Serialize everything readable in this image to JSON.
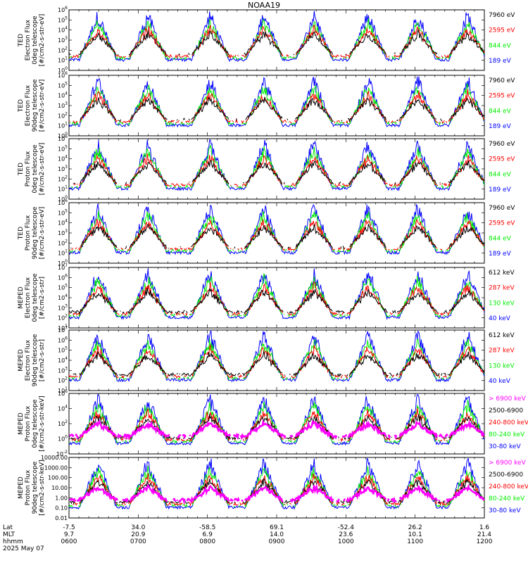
{
  "title": "NOAA19",
  "date_label": "2025 May 07",
  "colors": {
    "black": "#000000",
    "red": "#ff0000",
    "green": "#00ee00",
    "blue": "#0000ff",
    "magenta": "#ff00ff"
  },
  "chart_data": {
    "type": "line",
    "x_axis": {
      "row_labels": [
        "Lat",
        "MLT",
        "hhmm"
      ],
      "ticks": [
        {
          "lat": "-7.5",
          "mlt": "9.7",
          "hhmm": "0600"
        },
        {
          "lat": "34.0",
          "mlt": "20.9",
          "hhmm": "0700"
        },
        {
          "lat": "-58.5",
          "mlt": "6.9",
          "hhmm": "0800"
        },
        {
          "lat": "69.1",
          "mlt": "14.0",
          "hhmm": "0900"
        },
        {
          "lat": "-52.4",
          "mlt": "23.6",
          "hhmm": "1000"
        },
        {
          "lat": "26.2",
          "mlt": "10.1",
          "hhmm": "1100"
        },
        {
          "lat": "1.6",
          "mlt": "21.4",
          "hhmm": "1200"
        }
      ]
    },
    "panels": [
      {
        "ylabel": [
          "TED",
          "Electron Flux",
          "0deg telescope",
          "[#/cm2-s-str-eV]"
        ],
        "yticks": [
          "10^0",
          "10^1",
          "10^2",
          "10^3",
          "10^4",
          "10^5",
          "10^6"
        ],
        "legend": [
          {
            "label": "7960 eV",
            "color": "black"
          },
          {
            "label": "2595 eV",
            "color": "red"
          },
          {
            "label": "844 eV",
            "color": "green"
          },
          {
            "label": "189 eV",
            "color": "blue"
          }
        ]
      },
      {
        "ylabel": [
          "TED",
          "Electron Flux",
          "90deg telescope",
          "[#/cm2-s-str-eV]"
        ],
        "yticks": [
          "10^0",
          "10^1",
          "10^2",
          "10^3",
          "10^4",
          "10^5",
          "10^6"
        ],
        "legend": [
          {
            "label": "7960 eV",
            "color": "black"
          },
          {
            "label": "2595 eV",
            "color": "red"
          },
          {
            "label": "844 eV",
            "color": "green"
          },
          {
            "label": "189 eV",
            "color": "blue"
          }
        ]
      },
      {
        "ylabel": [
          "TED",
          "Proton Flux",
          "0deg telescope",
          "[#/cm2-s-str-eV]"
        ],
        "yticks": [
          "10^0",
          "10^1",
          "10^2",
          "10^3",
          "10^4",
          "10^5",
          "10^6"
        ],
        "legend": [
          {
            "label": "7960 eV",
            "color": "black"
          },
          {
            "label": "2595 eV",
            "color": "red"
          },
          {
            "label": "844 eV",
            "color": "green"
          },
          {
            "label": "189 eV",
            "color": "blue"
          }
        ]
      },
      {
        "ylabel": [
          "TED",
          "Proton Flux",
          "90deg telescope",
          "[#/cm2-s-str-eV]"
        ],
        "yticks": [
          "10^0",
          "10^1",
          "10^2",
          "10^3",
          "10^4",
          "10^5",
          "10^6"
        ],
        "legend": [
          {
            "label": "7960 eV",
            "color": "black"
          },
          {
            "label": "2595 eV",
            "color": "red"
          },
          {
            "label": "844 eV",
            "color": "green"
          },
          {
            "label": "189 eV",
            "color": "blue"
          }
        ]
      },
      {
        "ylabel": [
          "MEPED",
          "Electron Flux",
          "0deg telescope",
          "[#/cm2-s-str]"
        ],
        "yticks": [
          "10^1",
          "10^2",
          "10^3",
          "10^4",
          "10^5",
          "10^6",
          "10^7"
        ],
        "legend": [
          {
            "label": "612 keV",
            "color": "black"
          },
          {
            "label": "287 keV",
            "color": "red"
          },
          {
            "label": "130 keV",
            "color": "green"
          },
          {
            "label": "40 keV",
            "color": "blue"
          }
        ]
      },
      {
        "ylabel": [
          "MEPED",
          "Electron Flux",
          "90deg telescope",
          "[#/cm2-s-str]"
        ],
        "yticks": [
          "10^1",
          "10^2",
          "10^3",
          "10^4",
          "10^5",
          "10^6",
          "10^7"
        ],
        "legend": [
          {
            "label": "612 keV",
            "color": "black"
          },
          {
            "label": "287 keV",
            "color": "red"
          },
          {
            "label": "130 keV",
            "color": "green"
          },
          {
            "label": "40 keV",
            "color": "blue"
          }
        ]
      },
      {
        "ylabel": [
          "MEPED",
          "Proton Flux",
          "0deg telescope",
          "[#/cm2-s-str-keV]"
        ],
        "yticks": [
          "10^-2",
          "10^0",
          "10^2",
          "10^4",
          "10^6"
        ],
        "legend": [
          {
            "label": "> 6900 keV",
            "color": "magenta"
          },
          {
            "label": "2500-6900",
            "color": "black"
          },
          {
            "label": "240-800 keV",
            "color": "red"
          },
          {
            "label": "80-240 keV",
            "color": "green"
          },
          {
            "label": "30-80 keV",
            "color": "blue"
          }
        ]
      },
      {
        "ylabel": [
          "MEPED",
          "Proton Flux",
          "90deg telescope",
          "[#/cm2-s-str-keV]"
        ],
        "yticks": [
          "0.01",
          "0.10",
          "1.00",
          "10.00",
          "100.00",
          "1000.00",
          "10000.00"
        ],
        "legend": [
          {
            "label": "> 6900 keV",
            "color": "magenta"
          },
          {
            "label": "2500-6900",
            "color": "black"
          },
          {
            "label": "240-800 keV",
            "color": "red"
          },
          {
            "label": "80-240 keV",
            "color": "green"
          },
          {
            "label": "30-80 keV",
            "color": "blue"
          }
        ]
      }
    ]
  }
}
